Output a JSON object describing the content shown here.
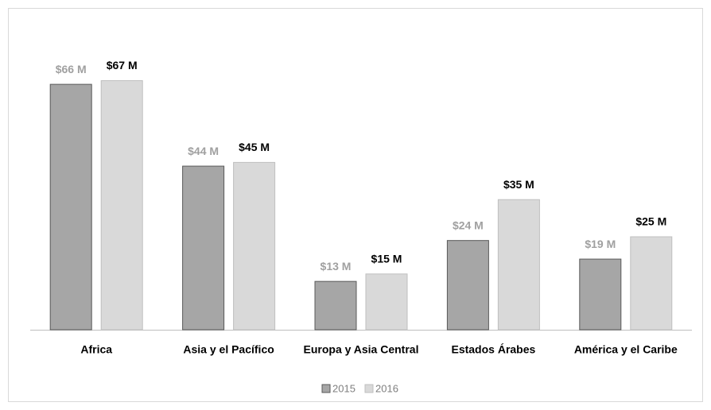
{
  "chart_data": {
    "type": "bar",
    "categories": [
      "Africa",
      "Asia y el Pacífico",
      "Europa y Asia Central",
      "Estados Árabes",
      "América y el Caribe"
    ],
    "series": [
      {
        "name": "2015",
        "color": "#a6a6a6",
        "values": [
          66,
          44,
          13,
          24,
          19
        ],
        "value_labels": [
          "$66 M",
          "$44 M",
          "$13 M",
          "$24 M",
          "$19 M"
        ]
      },
      {
        "name": "2016",
        "color": "#d9d9d9",
        "values": [
          67,
          45,
          15,
          35,
          25
        ],
        "value_labels": [
          "$67 M",
          "$45 M",
          "$15 M",
          "$35 M",
          "$25 M"
        ]
      }
    ],
    "legend": "bottom"
  }
}
